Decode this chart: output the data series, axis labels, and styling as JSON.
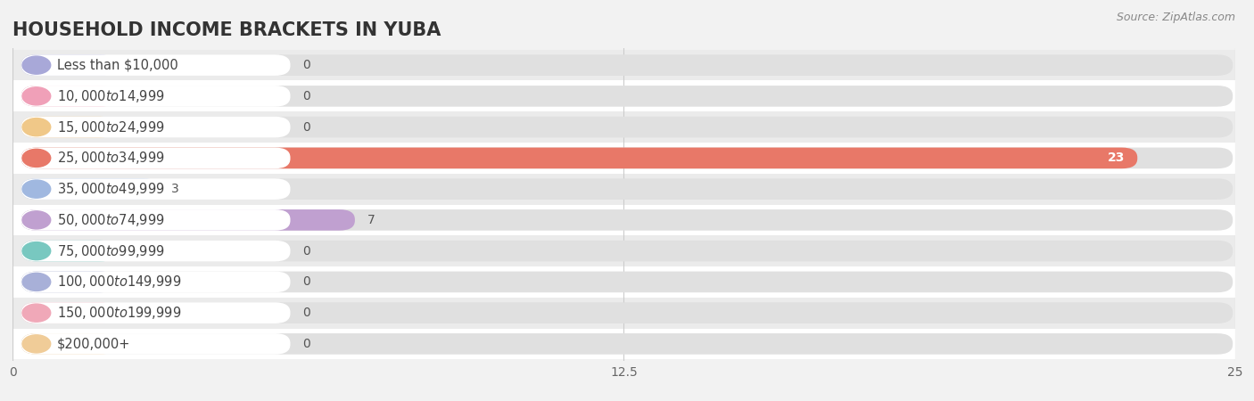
{
  "title": "HOUSEHOLD INCOME BRACKETS IN YUBA",
  "source": "Source: ZipAtlas.com",
  "categories": [
    "Less than $10,000",
    "$10,000 to $14,999",
    "$15,000 to $24,999",
    "$25,000 to $34,999",
    "$35,000 to $49,999",
    "$50,000 to $74,999",
    "$75,000 to $99,999",
    "$100,000 to $149,999",
    "$150,000 to $199,999",
    "$200,000+"
  ],
  "values": [
    0,
    0,
    0,
    23,
    3,
    7,
    0,
    0,
    0,
    0
  ],
  "bar_colors": [
    "#a8a8d8",
    "#f0a0b8",
    "#f0c888",
    "#e87868",
    "#a0b8e0",
    "#c0a0d0",
    "#78c8c0",
    "#a8b0d8",
    "#f0a8b8",
    "#f0cc98"
  ],
  "background_color": "#f2f2f2",
  "row_bg_colors": [
    "#ffffff",
    "#ebebeb"
  ],
  "xlim": [
    0,
    25
  ],
  "xticks": [
    0,
    12.5,
    25
  ],
  "title_fontsize": 15,
  "label_fontsize": 10.5,
  "value_fontsize": 10
}
